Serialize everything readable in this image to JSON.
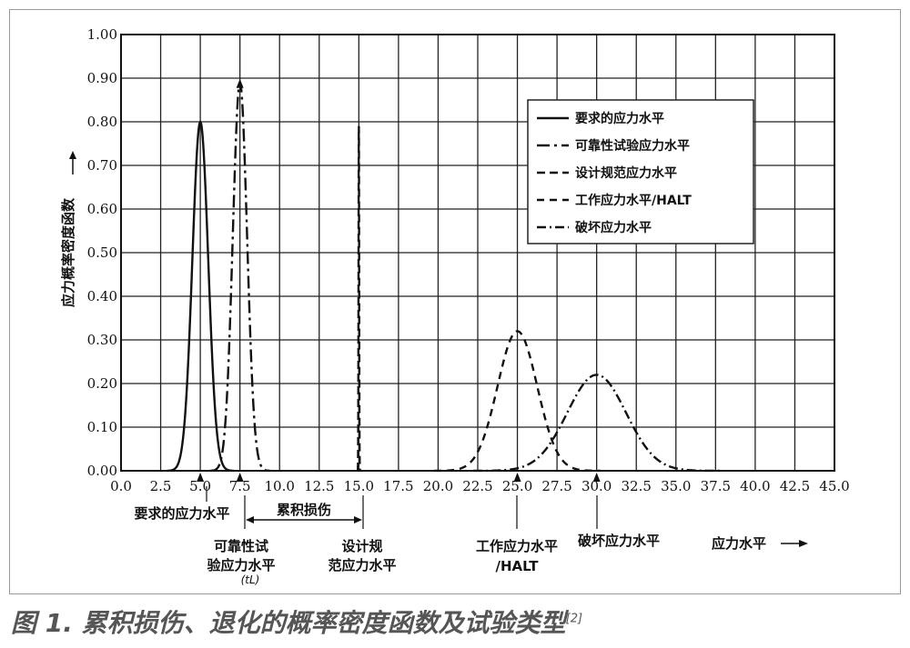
{
  "chart_data": {
    "type": "line",
    "xlabel": "应力水平",
    "ylabel": "应力概率密度函数",
    "xlim": [
      0,
      45
    ],
    "ylim": [
      0,
      1
    ],
    "x_ticks": [
      "0.0",
      "2.5",
      "5.0",
      "7.5",
      "10.0",
      "12.5",
      "15.0",
      "17.5",
      "20.0",
      "22.5",
      "25.0",
      "27.5",
      "30.0",
      "32.5",
      "35.0",
      "37.5",
      "40.0",
      "42.5",
      "45.0"
    ],
    "y_ticks": [
      "0.00",
      "0.10",
      "0.20",
      "0.30",
      "0.40",
      "0.50",
      "0.60",
      "0.70",
      "0.80",
      "0.90",
      "1.00"
    ],
    "grid": true,
    "legend_position": "top-right",
    "series": [
      {
        "name": "要求的应力水平",
        "style": "solid",
        "mean": 5.0,
        "sd": 0.5,
        "peak": 0.8
      },
      {
        "name": "可靠性试验应力水平",
        "style": "dashdot-long",
        "mean": 7.5,
        "sd": 0.45,
        "peak": 0.89
      },
      {
        "name": "设计规范应力水平",
        "style": "dashed",
        "mean": 15.0,
        "sd": 0.02,
        "peak": 0.79
      },
      {
        "name": "工作应力水平/HALT",
        "style": "short-dash",
        "mean": 25.0,
        "sd": 1.25,
        "peak": 0.32
      },
      {
        "name": "破坏应力水平",
        "style": "dashdot",
        "mean": 30.0,
        "sd": 1.85,
        "peak": 0.22
      }
    ],
    "annotations": {
      "required": "要求的应力水平",
      "cumulative": "累积损伤",
      "rel_line1": "可靠性试",
      "rel_line2": "验应力水平",
      "rel_line3": "(tL)",
      "design_line1": "设计规",
      "design_line2": "范应力水平",
      "work_line1": "工作应力水平",
      "work_line2": "/HALT",
      "failure": "破坏应力水平",
      "axis_arrow_label": "应力水平"
    }
  },
  "caption": {
    "text": "图 1. 累积损伤、退化的概率密度函数及试验类型",
    "ref": "[2]"
  }
}
